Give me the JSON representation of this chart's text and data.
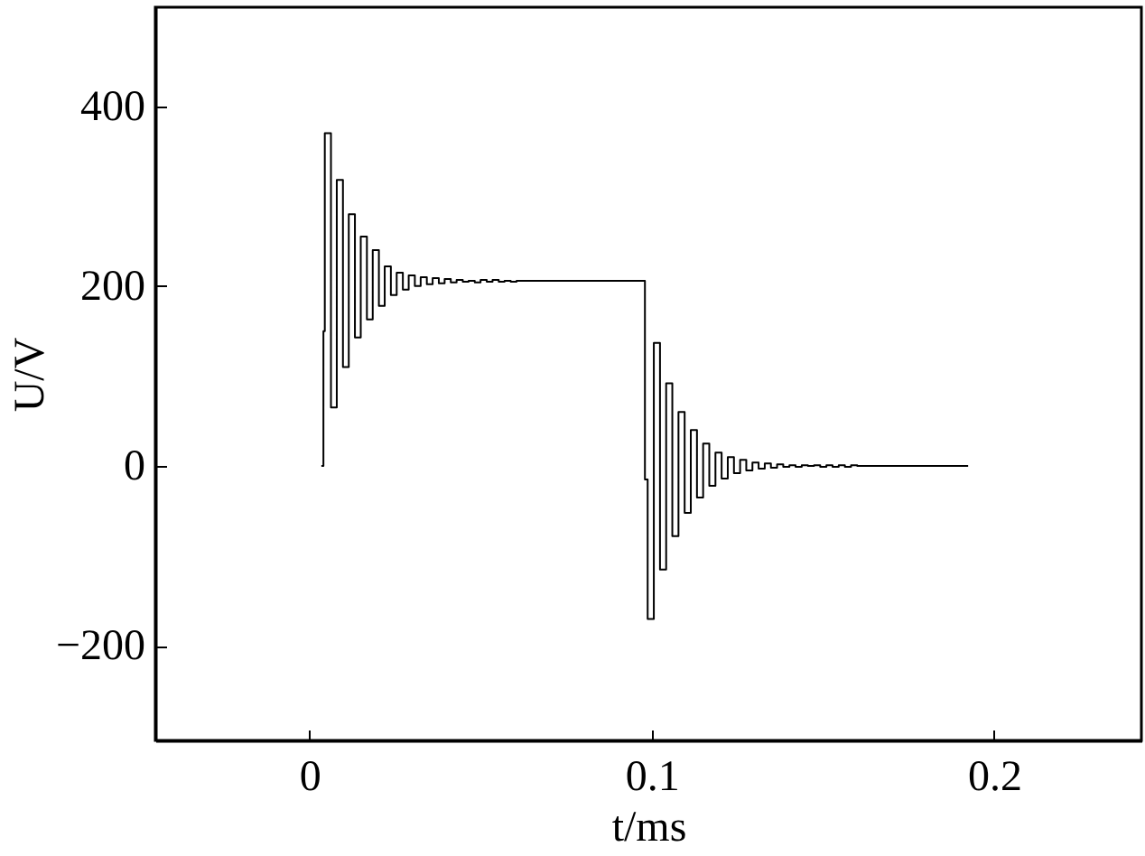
{
  "chart_data": {
    "type": "step",
    "xlabel": "t/ms",
    "ylabel": "U/V",
    "xlim": [
      -0.045,
      0.243
    ],
    "ylim": [
      -305,
      510
    ],
    "xticks": [
      0,
      0.1,
      0.2
    ],
    "yticks": [
      -200,
      0,
      200,
      400
    ],
    "grid": false,
    "series": [
      {
        "color": "#000000",
        "x": [
          0.0035,
          0.0041,
          0.0045,
          0.0063,
          0.008,
          0.0098,
          0.0115,
          0.0133,
          0.015,
          0.0168,
          0.0185,
          0.0203,
          0.022,
          0.0238,
          0.0255,
          0.0273,
          0.029,
          0.0308,
          0.0325,
          0.0343,
          0.036,
          0.0378,
          0.0395,
          0.0413,
          0.043,
          0.0448,
          0.0465,
          0.0483,
          0.05,
          0.0518,
          0.0535,
          0.0553,
          0.057,
          0.0588,
          0.0605,
          0.0623,
          0.098,
          0.0988,
          0.1006,
          0.1024,
          0.1042,
          0.106,
          0.1078,
          0.1096,
          0.1114,
          0.1132,
          0.115,
          0.1168,
          0.1186,
          0.1204,
          0.1222,
          0.124,
          0.1258,
          0.1276,
          0.1294,
          0.1312,
          0.133,
          0.1348,
          0.1366,
          0.1384,
          0.1402,
          0.142,
          0.1438,
          0.1456,
          0.1474,
          0.1492,
          0.151,
          0.1528,
          0.1546,
          0.1564,
          0.1582,
          0.16,
          0.1924
        ],
        "values": [
          0,
          150,
          370,
          65,
          318,
          110,
          280,
          143,
          255,
          163,
          240,
          178,
          222,
          190,
          215,
          196,
          212,
          200,
          210,
          202,
          209,
          203,
          208,
          204,
          207,
          205,
          206,
          204,
          207,
          205,
          207,
          205,
          206,
          205,
          206,
          206,
          -15,
          -170,
          137,
          -115,
          92,
          -78,
          60,
          -52,
          40,
          -35,
          25,
          -22,
          15,
          -14,
          10,
          -8,
          7,
          -5,
          4,
          -3,
          3,
          -2,
          2,
          -1,
          1,
          -1,
          1,
          0,
          1,
          -1,
          1,
          -1,
          1,
          -1,
          1,
          0,
          0
        ]
      }
    ]
  }
}
